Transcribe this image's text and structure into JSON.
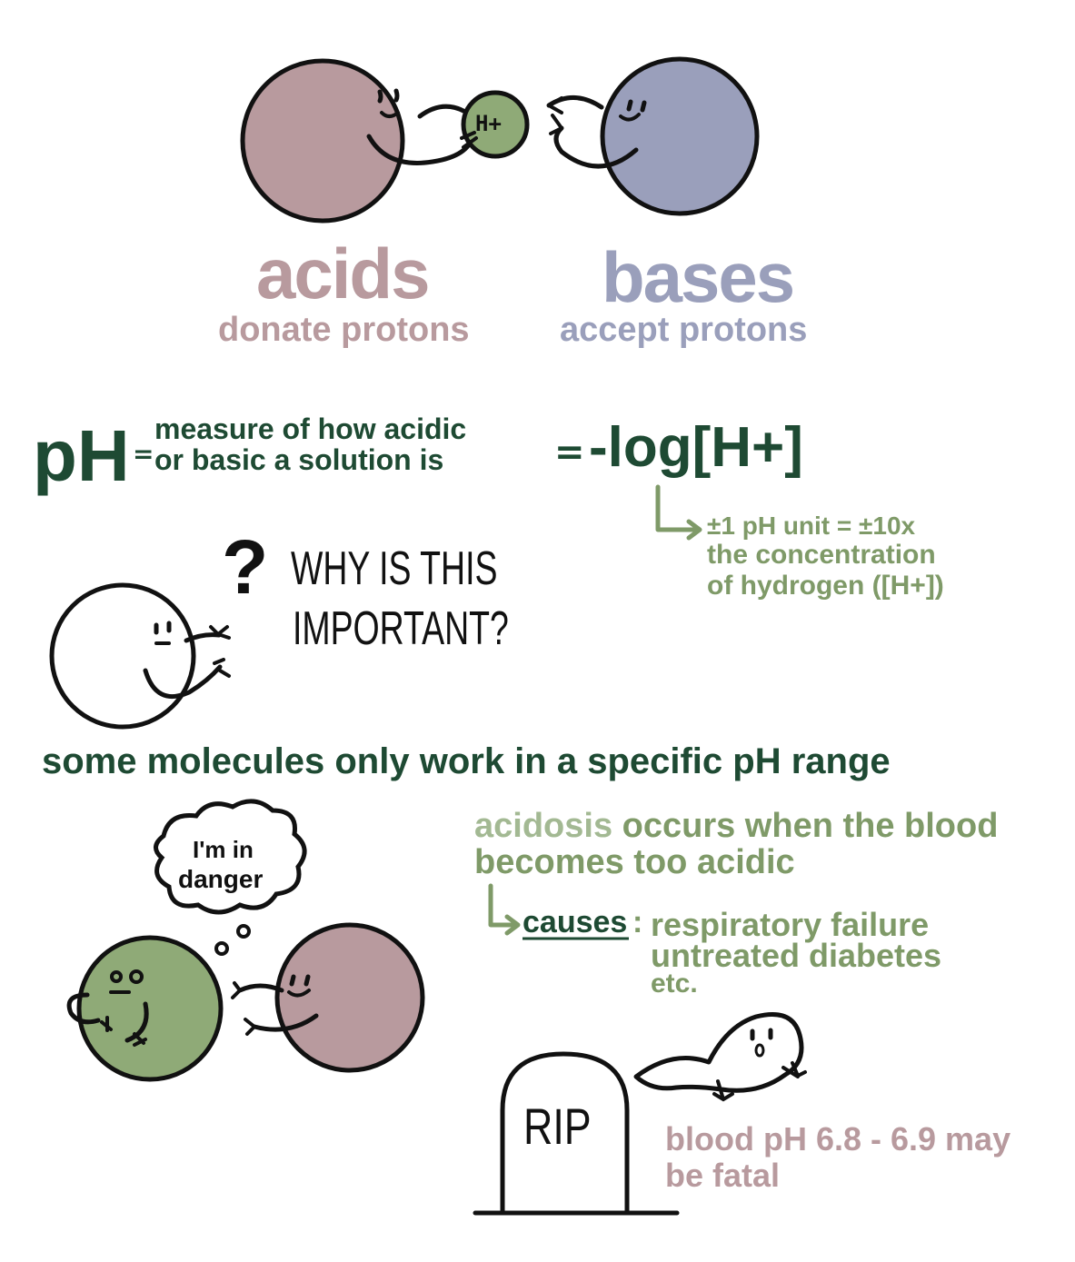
{
  "top": {
    "proton_label": "H+",
    "acids_word": "acids",
    "acids_desc": "donate protons",
    "bases_word": "bases",
    "bases_desc": "accept protons"
  },
  "ph": {
    "symbol": "pH",
    "eq1": "=",
    "def_line1": "measure of how acidic",
    "def_line2": "or basic a solution is",
    "eq2": "=",
    "formula": "-log[H+]",
    "note_line1": "±1 pH unit = ±10x",
    "note_line2": "the concentration",
    "note_line3": "of hydrogen ([H+])"
  },
  "why": {
    "question_mark": "?",
    "line1": "WHY IS THIS",
    "line2": "IMPORTANT?"
  },
  "molecules_text": "some molecules only work in a specific pH range",
  "danger": {
    "bubble_line1": "I'm in",
    "bubble_line2": "danger"
  },
  "acidosis": {
    "word": "acidosis",
    "line1_rest": "occurs when the blood",
    "line2": "becomes too acidic",
    "causes_label": "causes",
    "causes_colon": ":",
    "cause1": "respiratory failure",
    "cause2": "untreated diabetes",
    "cause3": "etc."
  },
  "grave": {
    "rip": "RIP",
    "fatal_line1": "blood pH 6.8 - 6.9 may",
    "fatal_line2": "be fatal"
  },
  "colors": {
    "acid": "#b89a9e",
    "base": "#9a9fbb",
    "proton": "#8faa77",
    "dark_green": "#1e4a33",
    "sage": "#7f9a68",
    "outline": "#111111"
  }
}
